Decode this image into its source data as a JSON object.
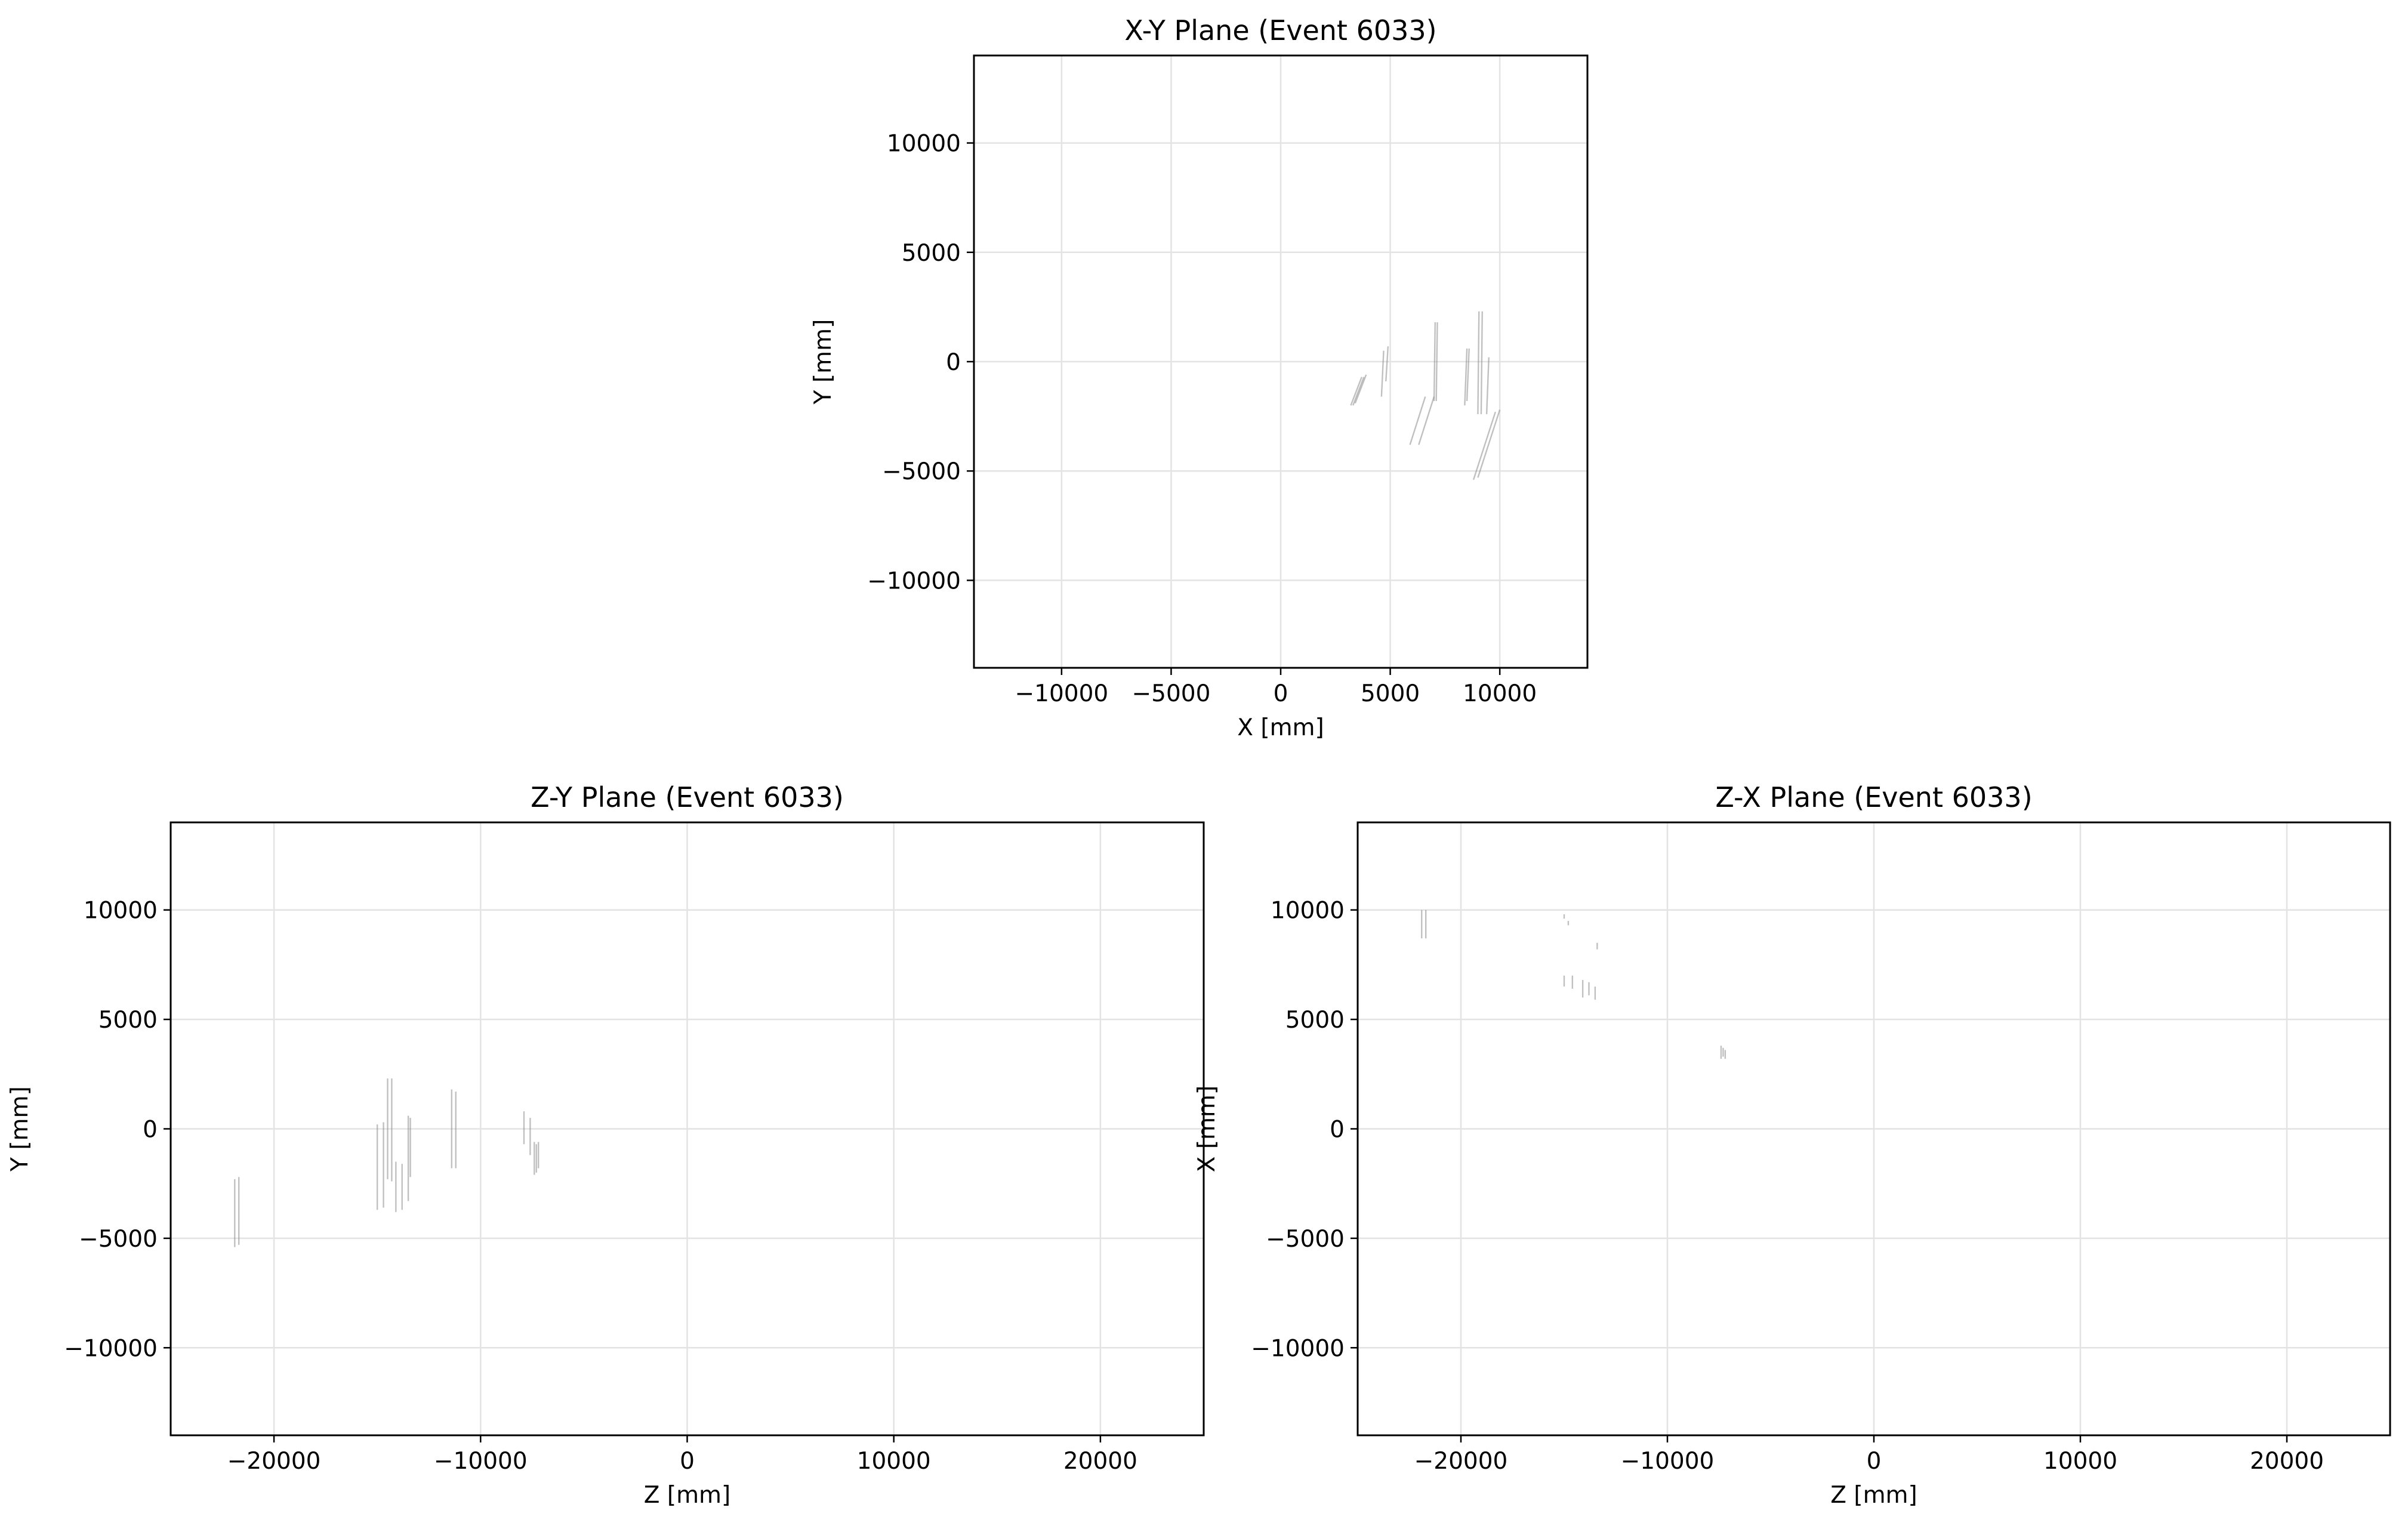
{
  "chart_data": [
    {
      "type": "line",
      "title": "X-Y Plane (Event 6033)",
      "xlabel": "X [mm]",
      "ylabel": "Y [mm]",
      "xlim": [
        -14000,
        14000
      ],
      "ylim": [
        -14000,
        14000
      ],
      "xticks": [
        -10000,
        -5000,
        0,
        5000,
        10000
      ],
      "yticks": [
        -10000,
        -5000,
        0,
        5000,
        10000
      ],
      "xtick_labels": [
        "−10000",
        "−5000",
        "0",
        "5000",
        "10000"
      ],
      "ytick_labels": [
        "−10000",
        "−5000",
        "0",
        "5000",
        "10000"
      ],
      "grid": true,
      "line_color": "#8c8c8c",
      "segments": [
        [
          3200,
          -2000,
          3700,
          -700
        ],
        [
          3300,
          -2000,
          3800,
          -700
        ],
        [
          3400,
          -1900,
          3900,
          -600
        ],
        [
          4600,
          -1600,
          4700,
          500
        ],
        [
          4800,
          -900,
          4900,
          700
        ],
        [
          5900,
          -3800,
          6600,
          -1600
        ],
        [
          6300,
          -3800,
          7000,
          -1600
        ],
        [
          7000,
          -1800,
          7050,
          1800
        ],
        [
          7100,
          -1800,
          7150,
          1800
        ],
        [
          8400,
          -2000,
          8500,
          600
        ],
        [
          8500,
          -1800,
          8600,
          600
        ],
        [
          9000,
          -2400,
          9050,
          2300
        ],
        [
          9150,
          -2400,
          9200,
          2300
        ],
        [
          9400,
          -2400,
          9500,
          200
        ],
        [
          8800,
          -5400,
          9800,
          -2300
        ],
        [
          9000,
          -5300,
          10000,
          -2200
        ]
      ]
    },
    {
      "type": "line",
      "title": "Z-Y Plane (Event 6033)",
      "xlabel": "Z [mm]",
      "ylabel": "Y [mm]",
      "xlim": [
        -25000,
        25000
      ],
      "ylim": [
        -14000,
        14000
      ],
      "xticks": [
        -20000,
        -10000,
        0,
        10000,
        20000
      ],
      "yticks": [
        -10000,
        -5000,
        0,
        5000,
        10000
      ],
      "xtick_labels": [
        "−20000",
        "−10000",
        "0",
        "10000",
        "20000"
      ],
      "ytick_labels": [
        "−10000",
        "−5000",
        "0",
        "5000",
        "10000"
      ],
      "grid": true,
      "line_color": "#8c8c8c",
      "segments": [
        [
          -21900,
          -5400,
          -21900,
          -2300
        ],
        [
          -21700,
          -5300,
          -21700,
          -2200
        ],
        [
          -15000,
          -3700,
          -15000,
          200
        ],
        [
          -14700,
          -3600,
          -14700,
          300
        ],
        [
          -14500,
          -2300,
          -14500,
          2300
        ],
        [
          -14300,
          -2400,
          -14300,
          2300
        ],
        [
          -14100,
          -3800,
          -14100,
          -1500
        ],
        [
          -13800,
          -3700,
          -13800,
          -1600
        ],
        [
          -13500,
          -3300,
          -13500,
          600
        ],
        [
          -13400,
          -2200,
          -13400,
          500
        ],
        [
          -11400,
          -1800,
          -11400,
          1800
        ],
        [
          -11200,
          -1800,
          -11200,
          1700
        ],
        [
          -7900,
          -700,
          -7900,
          800
        ],
        [
          -7600,
          -1200,
          -7600,
          500
        ],
        [
          -7400,
          -2100,
          -7400,
          -600
        ],
        [
          -7300,
          -2000,
          -7300,
          -700
        ],
        [
          -7200,
          -1800,
          -7200,
          -600
        ]
      ]
    },
    {
      "type": "line",
      "title": "Z-X Plane (Event 6033)",
      "xlabel": "Z [mm]",
      "ylabel": "X [mm]",
      "xlim": [
        -25000,
        25000
      ],
      "ylim": [
        -14000,
        14000
      ],
      "xticks": [
        -20000,
        -10000,
        0,
        10000,
        20000
      ],
      "yticks": [
        -10000,
        -5000,
        0,
        5000,
        10000
      ],
      "xtick_labels": [
        "−20000",
        "−10000",
        "0",
        "10000",
        "20000"
      ],
      "ytick_labels": [
        "−10000",
        "−5000",
        "0",
        "5000",
        "10000"
      ],
      "grid": true,
      "line_color": "#8c8c8c",
      "segments": [
        [
          -21900,
          8700,
          -21900,
          10000
        ],
        [
          -21700,
          8700,
          -21700,
          10000
        ],
        [
          -15000,
          9600,
          -15000,
          9800
        ],
        [
          -14800,
          9300,
          -14800,
          9500
        ],
        [
          -15000,
          6500,
          -15000,
          7000
        ],
        [
          -14600,
          6400,
          -14600,
          7000
        ],
        [
          -14100,
          6000,
          -14100,
          6800
        ],
        [
          -13800,
          6100,
          -13800,
          6700
        ],
        [
          -13500,
          5900,
          -13500,
          6500
        ],
        [
          -13400,
          8200,
          -13400,
          8500
        ],
        [
          -7400,
          3200,
          -7400,
          3800
        ],
        [
          -7300,
          3300,
          -7300,
          3700
        ],
        [
          -7200,
          3200,
          -7200,
          3600
        ]
      ]
    }
  ]
}
